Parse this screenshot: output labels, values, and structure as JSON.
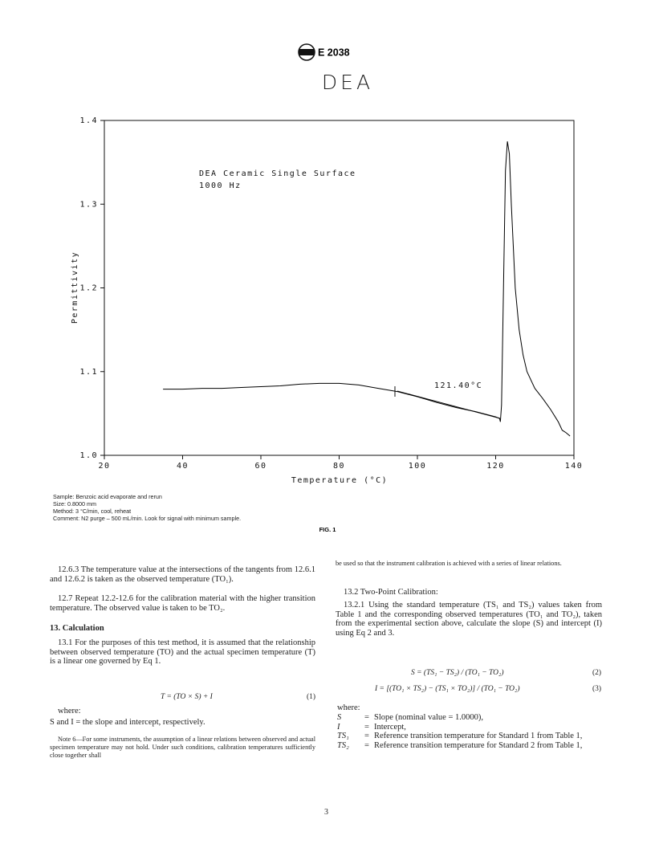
{
  "header": {
    "designation": "E 2038"
  },
  "chart_data": {
    "type": "line",
    "title": "DEA",
    "annotations": [
      "DEA Ceramic Single Surface",
      "1000 Hz",
      "121.40°C"
    ],
    "x_label": "Temperature (°C)",
    "y_label": "Permittivity",
    "x": [
      35,
      40,
      45,
      50,
      55,
      60,
      65,
      70,
      75,
      80,
      85,
      90,
      95,
      100,
      105,
      110,
      115,
      120,
      121,
      121.2,
      121.5,
      122,
      122.5,
      123,
      123.5,
      124,
      125,
      126,
      127,
      128,
      130,
      132,
      134,
      136,
      137,
      138,
      139
    ],
    "series": [
      {
        "color": "#000000",
        "values": [
          1.079,
          1.079,
          1.08,
          1.08,
          1.081,
          1.082,
          1.083,
          1.085,
          1.086,
          1.086,
          1.084,
          1.08,
          1.076,
          1.07,
          1.063,
          1.057,
          1.052,
          1.046,
          1.044,
          1.04,
          1.06,
          1.2,
          1.34,
          1.375,
          1.36,
          1.3,
          1.2,
          1.15,
          1.12,
          1.1,
          1.08,
          1.068,
          1.055,
          1.04,
          1.03,
          1.027,
          1.023
        ]
      }
    ],
    "xlim": [
      20,
      140
    ],
    "xticks": [
      20,
      40,
      60,
      80,
      100,
      120,
      140
    ],
    "ylim": [
      1.0,
      1.4
    ],
    "yticks": [
      {
        "value": 1.0,
        "label": "1.0"
      },
      1.1,
      1.2,
      1.3,
      1.4
    ]
  },
  "figure": {
    "notes": [
      "Sample: Benzoic acid evaporate and rerun",
      "Size: 0.8000 mm",
      "Method: 3 °C/min, cool, reheat",
      "Comment: N2 purge – 500 mL/min. Look for signal with minimum sample."
    ],
    "caption": "FIG. 1"
  },
  "body": {
    "left": {
      "p1": "12.6.3 The temperature value at the intersections of the tangents from 12.6.1 and 12.6.2 is taken as the observed temperature (TO₁).",
      "p2": "12.7 Repeat 12.2-12.6 for the calibration material with the higher transition temperature. The observed value is taken to be TO₂.",
      "heading": "13. Calculation",
      "p3": "13.1 For the purposes of this test method, it is assumed that the relationship between observed temperature (TO) and the actual specimen temperature (T) is a linear one governed by Eq 1.",
      "equation": {
        "formula": "T = (TO × S) + I",
        "number": "(1)"
      },
      "where": "where:",
      "definition": "S and I = the slope and intercept, respectively.",
      "note": "Note 6—For some instruments, the assumption of a linear relations between observed and actual specimen temperature may not hold. Under such conditions, calibration temperatures sufficiently close together shall"
    },
    "right": {
      "note_end": "be used so that the instrument calibration is achieved with a series of linear relations.",
      "heading": "13.2 Two-Point Calibration:",
      "p1": "13.2.1 Using the standard temperature (TS₁ and TS₂) values taken from Table 1 and the corresponding observed temperatures (TO₁ and TO₂), taken from the experimental section above, calculate the slope (S) and intercept (I) using Eq 2 and 3.",
      "equations": [
        {
          "formula": "S = (TS₁ − TS₂) / (TO₁ − TO₂)",
          "number": "(2)"
        },
        {
          "formula": "I = [(TO₁ × TS₂) − (TS₁ × TO₂)] / (TO₁ − TO₂)",
          "number": "(3)"
        }
      ],
      "where": "where:",
      "definitions": [
        {
          "symbol": "S",
          "equals": "=",
          "text": "Slope (nominal value = 1.0000),"
        },
        {
          "symbol": "I",
          "equals": "=",
          "text": "Intercept,"
        },
        {
          "symbol": "TS₁",
          "equals": "=",
          "text": "Reference transition temperature for Standard 1 from Table 1,"
        },
        {
          "symbol": "TS₂",
          "equals": "=",
          "text": "Reference transition temperature for Standard 2 from Table 1,"
        }
      ]
    }
  },
  "page_number": "3"
}
